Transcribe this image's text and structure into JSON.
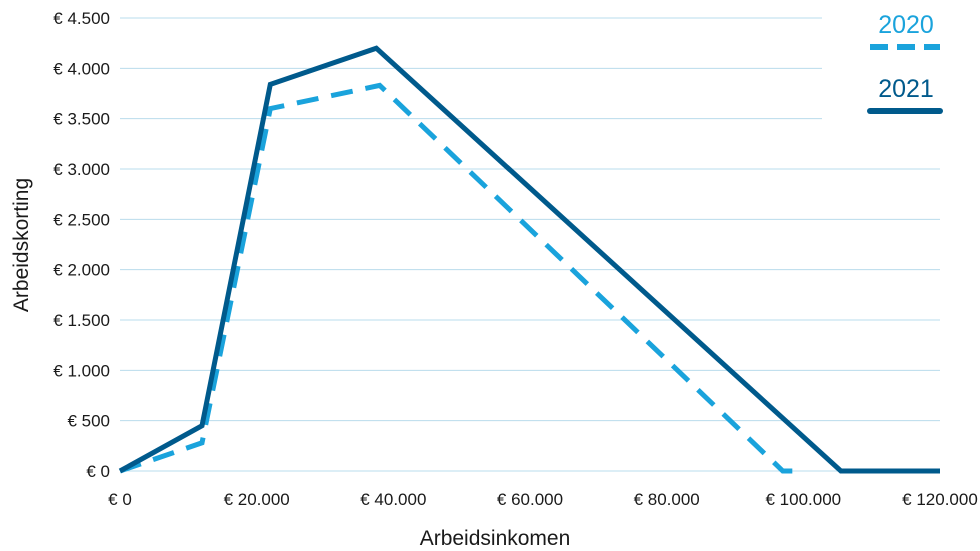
{
  "chart_data": {
    "type": "line",
    "xlabel": "Arbeidsinkomen",
    "ylabel": "Arbeidskorting",
    "xlim": [
      0,
      120000
    ],
    "ylim": [
      0,
      4500
    ],
    "x_ticks": [
      0,
      20000,
      40000,
      60000,
      80000,
      100000,
      120000
    ],
    "x_tick_labels": [
      "€ 0",
      "€ 20.000",
      "€ 40.000",
      "€ 60.000",
      "€ 80.000",
      "€ 100.000",
      "€ 120.000"
    ],
    "y_ticks": [
      0,
      500,
      1000,
      1500,
      2000,
      2500,
      3000,
      3500,
      4000,
      4500
    ],
    "y_tick_labels": [
      "€ 0",
      "€ 500",
      "€ 1.000",
      "€ 1.500",
      "€ 2.000",
      "€ 2.500",
      "€ 3.000",
      "€ 3.500",
      "€ 4.000",
      "€ 4.500"
    ],
    "grid": true,
    "legend_position": "top-right",
    "series": [
      {
        "name": "2020",
        "color": "#1aa3dc",
        "dash": true,
        "points": [
          [
            0,
            0
          ],
          [
            12000,
            280
          ],
          [
            22000,
            3600
          ],
          [
            38000,
            3830
          ],
          [
            97000,
            0
          ],
          [
            100000,
            0
          ]
        ]
      },
      {
        "name": "2021",
        "color": "#005a8c",
        "dash": false,
        "points": [
          [
            0,
            0
          ],
          [
            12000,
            450
          ],
          [
            22000,
            3840
          ],
          [
            37500,
            4200
          ],
          [
            105500,
            0
          ],
          [
            120000,
            0
          ]
        ]
      }
    ]
  }
}
